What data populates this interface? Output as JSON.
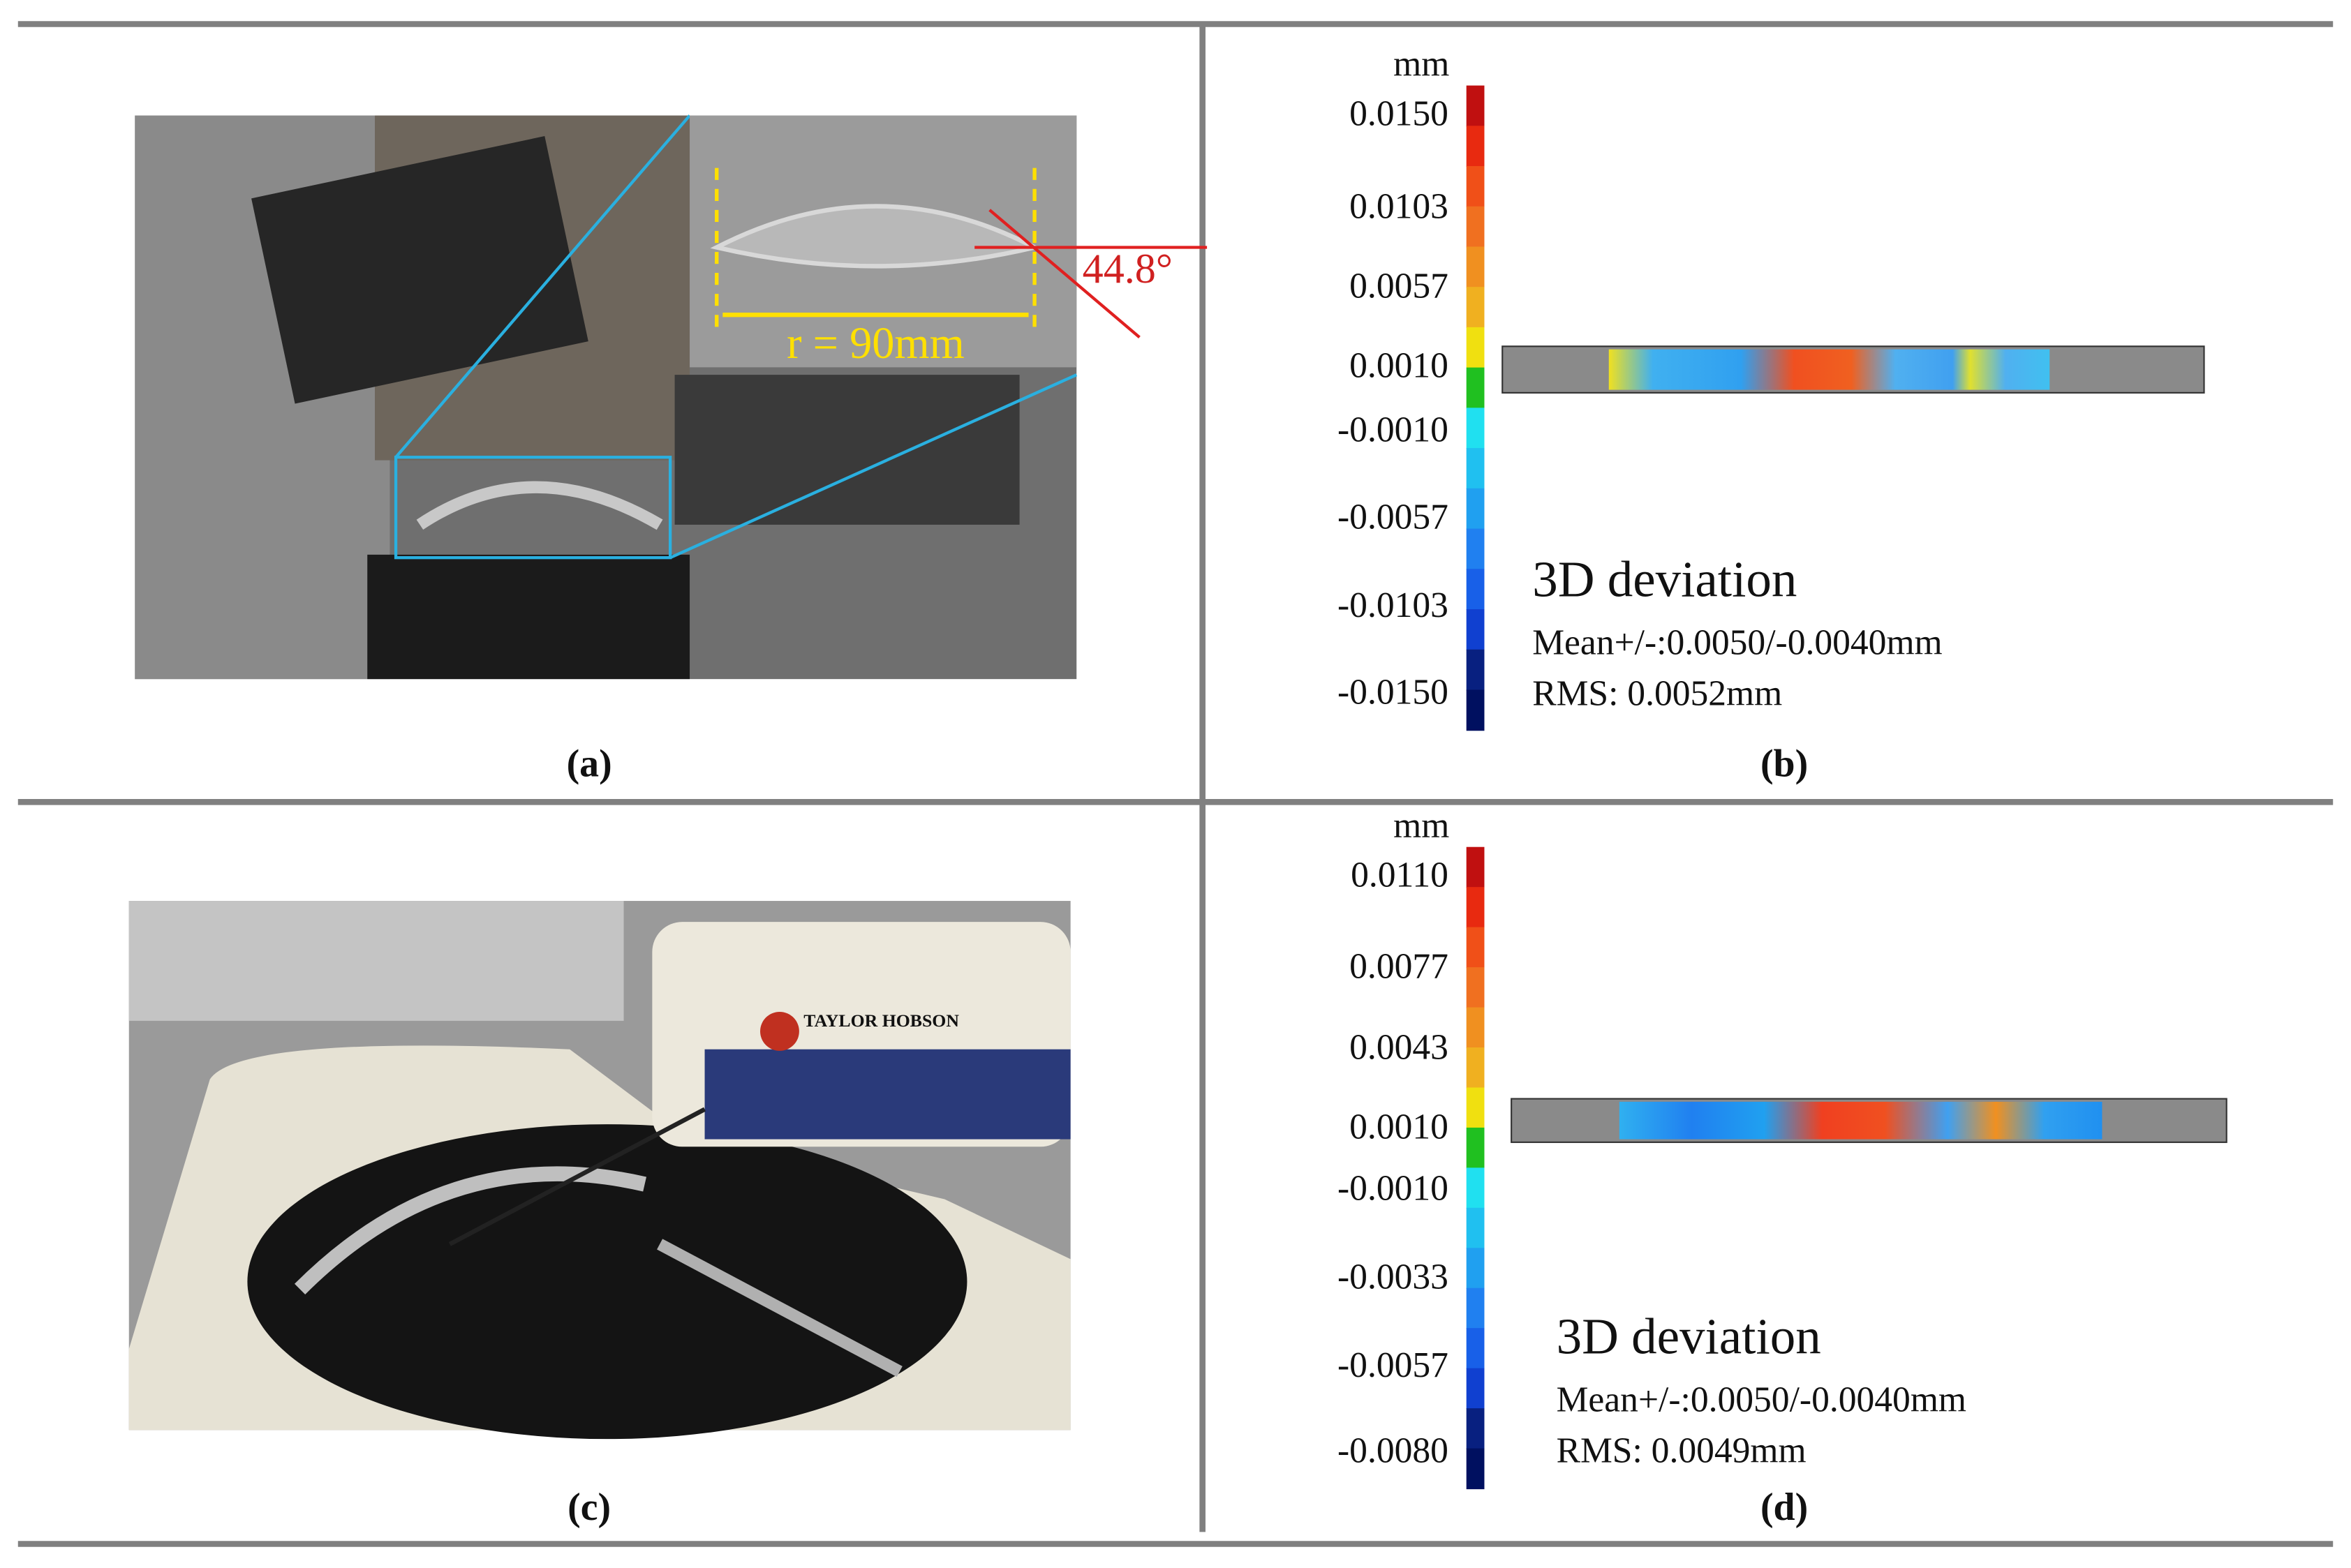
{
  "panels": [
    {
      "label": "(a)",
      "annotations": [
        "r = 90mm",
        "44.8°"
      ]
    },
    {
      "label": "(b)",
      "unit": "mm",
      "scale_labels": [
        "0.0150",
        "0.0103",
        "0.0057",
        "0.0010",
        "-0.0010",
        "-0.0057",
        "-0.0103",
        "-0.0150"
      ],
      "title": "3D deviation",
      "mean": "Mean+/-:0.0050/-0.0040mm",
      "rms": "RMS: 0.0052mm"
    },
    {
      "label": "(c)",
      "annotations": [
        "TAYLOR HOBSON"
      ]
    },
    {
      "label": "(d)",
      "unit": "mm",
      "scale_labels": [
        "0.0110",
        "0.0077",
        "0.0043",
        "0.0010",
        "-0.0010",
        "-0.0033",
        "-0.0057",
        "-0.0080"
      ],
      "title": "3D deviation",
      "mean": "Mean+/-:0.0050/-0.0040mm",
      "rms": "RMS: 0.0049mm"
    }
  ]
}
